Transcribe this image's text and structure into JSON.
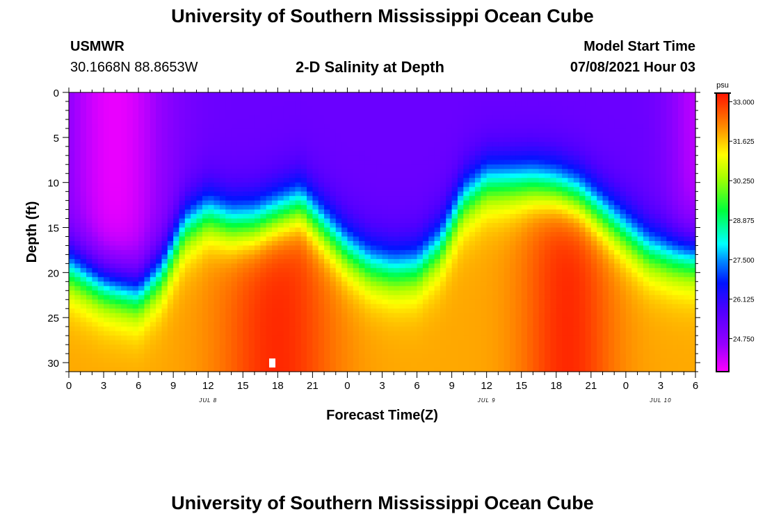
{
  "header": {
    "title": "University of Southern Mississippi Ocean Cube",
    "station": "USMWR",
    "coords": "30.1668N  88.8653W",
    "plot_title": "2-D Salinity at Depth",
    "model_start_label": "Model Start Time",
    "model_start_value": "07/08/2021 Hour 03"
  },
  "footer": {
    "title": "University of Southern Mississippi Ocean Cube"
  },
  "chart_data": {
    "type": "heatmap",
    "title": "2-D Salinity at Depth",
    "xlabel": "Forecast Time(Z)",
    "ylabel": "Depth (ft)",
    "x_range": [
      0,
      54
    ],
    "y_range": [
      0,
      31
    ],
    "x_ticks": [
      0,
      3,
      6,
      9,
      12,
      15,
      18,
      21,
      24,
      27,
      30,
      33,
      36,
      39,
      42,
      45,
      48,
      51,
      54
    ],
    "x_tick_labels": [
      "0",
      "3",
      "6",
      "9",
      "12",
      "15",
      "18",
      "21",
      "0",
      "3",
      "6",
      "9",
      "12",
      "15",
      "18",
      "21",
      "0",
      "3",
      "6"
    ],
    "y_ticks": [
      0,
      5,
      10,
      15,
      20,
      25,
      30
    ],
    "y_tick_labels": [
      "0",
      "5",
      "10",
      "15",
      "20",
      "25",
      "30"
    ],
    "date_labels": [
      {
        "hour": 12,
        "text": "JUL 8"
      },
      {
        "hour": 36,
        "text": "JUL 9"
      },
      {
        "hour": 51,
        "text": "JUL 10"
      }
    ],
    "colorbar": {
      "unit": "psu",
      "min": 23.6,
      "max": 33.3,
      "tick_values": [
        33.0,
        31.625,
        30.25,
        28.875,
        27.5,
        26.125,
        24.75
      ],
      "tick_labels": [
        "33.000",
        "31.625",
        "30.250",
        "28.875",
        "27.500",
        "26.125",
        "24.750"
      ]
    },
    "surface_salinity": {
      "min": 23.8,
      "max": 25.3
    },
    "bottom_salinity": {
      "min": 31.9,
      "max": 33.1
    },
    "halocline_center_depth_ft": {
      "hours": [
        0,
        3,
        6,
        8,
        10,
        12,
        14,
        16,
        18,
        20,
        22,
        24,
        26,
        28,
        30,
        32,
        34,
        36,
        38,
        40,
        42,
        44,
        46,
        48,
        50,
        52,
        54
      ],
      "depths": [
        19.5,
        21.5,
        22.5,
        20,
        15,
        13.5,
        14.5,
        14.5,
        13.5,
        12.5,
        15,
        17.5,
        19.2,
        19.8,
        19.5,
        17,
        12,
        10,
        10,
        10,
        10.5,
        11.5,
        13.5,
        15.5,
        17.5,
        18.2,
        18.5
      ]
    },
    "halocline_thickness_ft": 8,
    "marker": {
      "hour": 17.5,
      "depth_ft": 30,
      "color": "#ffffff"
    }
  }
}
